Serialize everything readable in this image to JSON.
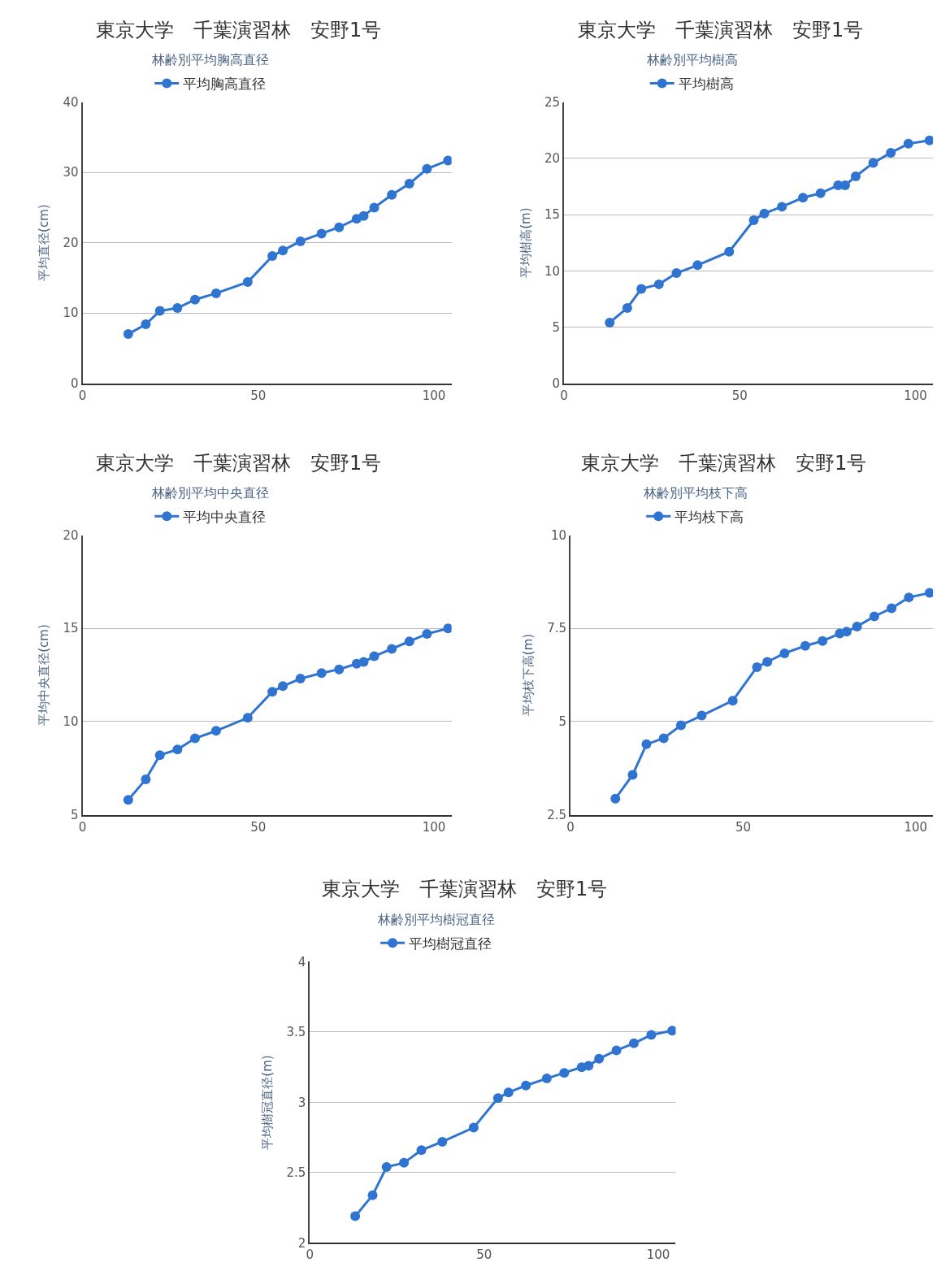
{
  "chart_data": [
    {
      "type": "line",
      "title": "東京大学　千葉演習林　安野1号",
      "subtitle": "林齢別平均胸高直径",
      "ylabel": "平均直径(cm)",
      "x": [
        13,
        18,
        22,
        27,
        32,
        38,
        47,
        54,
        57,
        62,
        68,
        73,
        78,
        80,
        83,
        88,
        93,
        98,
        104
      ],
      "xlim": [
        0,
        105
      ],
      "xticks": [
        0,
        50,
        100
      ],
      "ylim": [
        0,
        40
      ],
      "yticks": [
        0,
        10,
        20,
        30,
        40
      ],
      "grid": "y",
      "legend": "top",
      "marker": "circle",
      "line_style": "solid",
      "series": [
        {
          "name": "平均胸高直径",
          "color": "#2f74d0",
          "values": [
            7.0,
            8.4,
            10.3,
            10.7,
            11.9,
            12.8,
            14.4,
            18.1,
            18.9,
            20.2,
            21.3,
            22.2,
            23.4,
            23.8,
            25.0,
            26.8,
            28.4,
            30.5,
            31.7
          ]
        }
      ]
    },
    {
      "type": "line",
      "title": "東京大学　千葉演習林　安野1号",
      "subtitle": "林齢別平均樹高",
      "ylabel": "平均樹高(m)",
      "x": [
        13,
        18,
        22,
        27,
        32,
        38,
        47,
        54,
        57,
        62,
        68,
        73,
        78,
        80,
        83,
        88,
        93,
        98,
        104
      ],
      "xlim": [
        0,
        105
      ],
      "xticks": [
        0,
        50,
        100
      ],
      "ylim": [
        0,
        25
      ],
      "yticks": [
        0,
        5,
        10,
        15,
        20,
        25
      ],
      "grid": "y",
      "legend": "top",
      "marker": "circle",
      "line_style": "solid",
      "series": [
        {
          "name": "平均樹高",
          "color": "#2f74d0",
          "values": [
            5.4,
            6.7,
            8.4,
            8.8,
            9.8,
            10.5,
            11.7,
            14.5,
            15.1,
            15.7,
            16.5,
            16.9,
            17.6,
            17.6,
            18.4,
            19.6,
            20.5,
            21.3,
            21.6
          ]
        }
      ]
    },
    {
      "type": "line",
      "title": "東京大学　千葉演習林　安野1号",
      "subtitle": "林齢別平均中央直径",
      "ylabel": "平均中央直径(cm)",
      "x": [
        13,
        18,
        22,
        27,
        32,
        38,
        47,
        54,
        57,
        62,
        68,
        73,
        78,
        80,
        83,
        88,
        93,
        98,
        104
      ],
      "xlim": [
        0,
        105
      ],
      "xticks": [
        0,
        50,
        100
      ],
      "ylim": [
        5,
        20
      ],
      "yticks": [
        5,
        10,
        15,
        20
      ],
      "grid": "y",
      "legend": "top",
      "marker": "circle",
      "line_style": "solid",
      "series": [
        {
          "name": "平均中央直径",
          "color": "#2f74d0",
          "values": [
            5.8,
            6.9,
            8.2,
            8.5,
            9.1,
            9.5,
            10.2,
            11.6,
            11.9,
            12.3,
            12.6,
            12.8,
            13.1,
            13.2,
            13.5,
            13.9,
            14.3,
            14.7,
            15.0
          ]
        }
      ]
    },
    {
      "type": "line",
      "title": "東京大学　千葉演習林　安野1号",
      "subtitle": "林齢別平均枝下高",
      "ylabel": "平均枝下高(m)",
      "x": [
        13,
        18,
        22,
        27,
        32,
        38,
        47,
        54,
        57,
        62,
        68,
        73,
        78,
        80,
        83,
        88,
        93,
        98,
        104
      ],
      "xlim": [
        0,
        105
      ],
      "xticks": [
        0,
        50,
        100
      ],
      "ylim": [
        2.5,
        10
      ],
      "yticks": [
        2.5,
        5,
        7.5,
        10
      ],
      "grid": "y",
      "legend": "top",
      "marker": "circle",
      "line_style": "solid",
      "series": [
        {
          "name": "平均枝下高",
          "color": "#2f74d0",
          "values": [
            2.93,
            3.57,
            4.39,
            4.55,
            4.9,
            5.16,
            5.56,
            6.46,
            6.6,
            6.83,
            7.03,
            7.16,
            7.36,
            7.41,
            7.55,
            7.82,
            8.04,
            8.33,
            8.45
          ]
        }
      ]
    },
    {
      "type": "line",
      "title": "東京大学　千葉演習林　安野1号",
      "subtitle": "林齢別平均樹冠直径",
      "ylabel": "平均樹冠直径(m)",
      "x": [
        13,
        18,
        22,
        27,
        32,
        38,
        47,
        54,
        57,
        62,
        68,
        73,
        78,
        80,
        83,
        88,
        93,
        98,
        104
      ],
      "xlim": [
        0,
        105
      ],
      "xticks": [
        0,
        50,
        100
      ],
      "ylim": [
        2,
        4
      ],
      "yticks": [
        2,
        2.5,
        3,
        3.5,
        4
      ],
      "grid": "y",
      "legend": "top",
      "marker": "circle",
      "line_style": "solid",
      "series": [
        {
          "name": "平均樹冠直径",
          "color": "#2f74d0",
          "values": [
            2.19,
            2.34,
            2.54,
            2.57,
            2.66,
            2.72,
            2.82,
            3.03,
            3.07,
            3.12,
            3.17,
            3.21,
            3.25,
            3.26,
            3.31,
            3.37,
            3.42,
            3.48,
            3.51
          ]
        }
      ]
    }
  ]
}
